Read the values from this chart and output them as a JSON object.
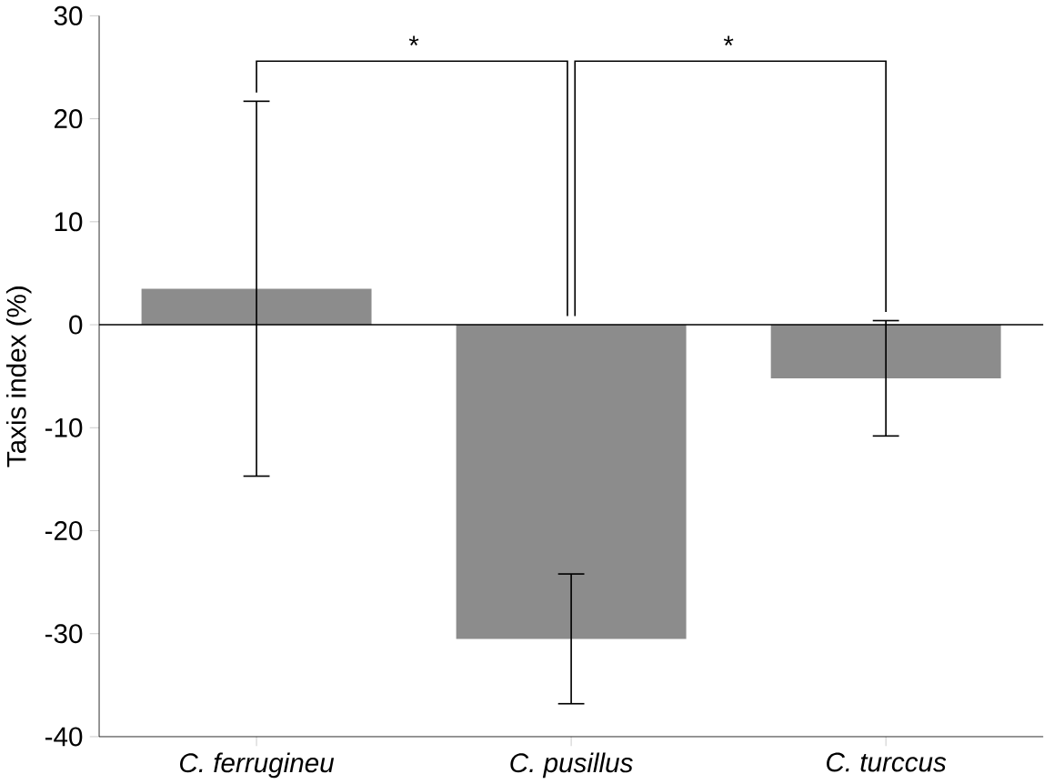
{
  "chart_data": {
    "type": "bar",
    "ylabel": "Taxis index (%)",
    "categories": [
      "C. ferrugineu",
      "C. pusillus",
      "C. turccus"
    ],
    "values": [
      3.5,
      -30.5,
      -5.2
    ],
    "errors": [
      18.2,
      6.3,
      5.6
    ],
    "color": "#8c8c8c",
    "ylim": [
      -40,
      30
    ],
    "yticks": [
      -40,
      -30,
      -20,
      -10,
      0,
      10,
      20,
      30
    ],
    "annotations": [
      "*",
      "*"
    ],
    "ref_lines": [
      {
        "axis": "y",
        "value": 0,
        "color": "#000000"
      }
    ]
  }
}
